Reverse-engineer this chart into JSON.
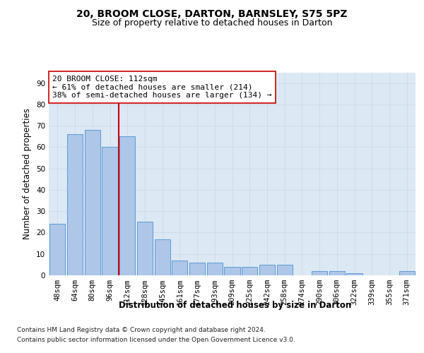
{
  "title": "20, BROOM CLOSE, DARTON, BARNSLEY, S75 5PZ",
  "subtitle": "Size of property relative to detached houses in Darton",
  "xlabel": "Distribution of detached houses by size in Darton",
  "ylabel": "Number of detached properties",
  "footnote1": "Contains HM Land Registry data © Crown copyright and database right 2024.",
  "footnote2": "Contains public sector information licensed under the Open Government Licence v3.0.",
  "annotation_line1": "20 BROOM CLOSE: 112sqm",
  "annotation_line2": "← 61% of detached houses are smaller (214)",
  "annotation_line3": "38% of semi-detached houses are larger (134) →",
  "bar_labels": [
    "48sqm",
    "64sqm",
    "80sqm",
    "96sqm",
    "112sqm",
    "128sqm",
    "145sqm",
    "161sqm",
    "177sqm",
    "193sqm",
    "209sqm",
    "225sqm",
    "242sqm",
    "258sqm",
    "274sqm",
    "290sqm",
    "306sqm",
    "322sqm",
    "339sqm",
    "355sqm",
    "371sqm"
  ],
  "bar_values": [
    24,
    66,
    68,
    60,
    65,
    25,
    17,
    7,
    6,
    6,
    4,
    4,
    5,
    5,
    0,
    2,
    2,
    1,
    0,
    0,
    2
  ],
  "bar_color": "#aec6e8",
  "bar_edge_color": "#5b9bd5",
  "vline_color": "#cc0000",
  "vline_x_index": 3.5,
  "ylim": [
    0,
    95
  ],
  "yticks": [
    0,
    10,
    20,
    30,
    40,
    50,
    60,
    70,
    80,
    90
  ],
  "grid_color": "#d0d8e8",
  "bg_color": "#dce8f4",
  "title_fontsize": 10,
  "subtitle_fontsize": 9,
  "axis_label_fontsize": 8.5,
  "tick_fontsize": 7.5,
  "annotation_fontsize": 8,
  "footnote_fontsize": 6.5
}
